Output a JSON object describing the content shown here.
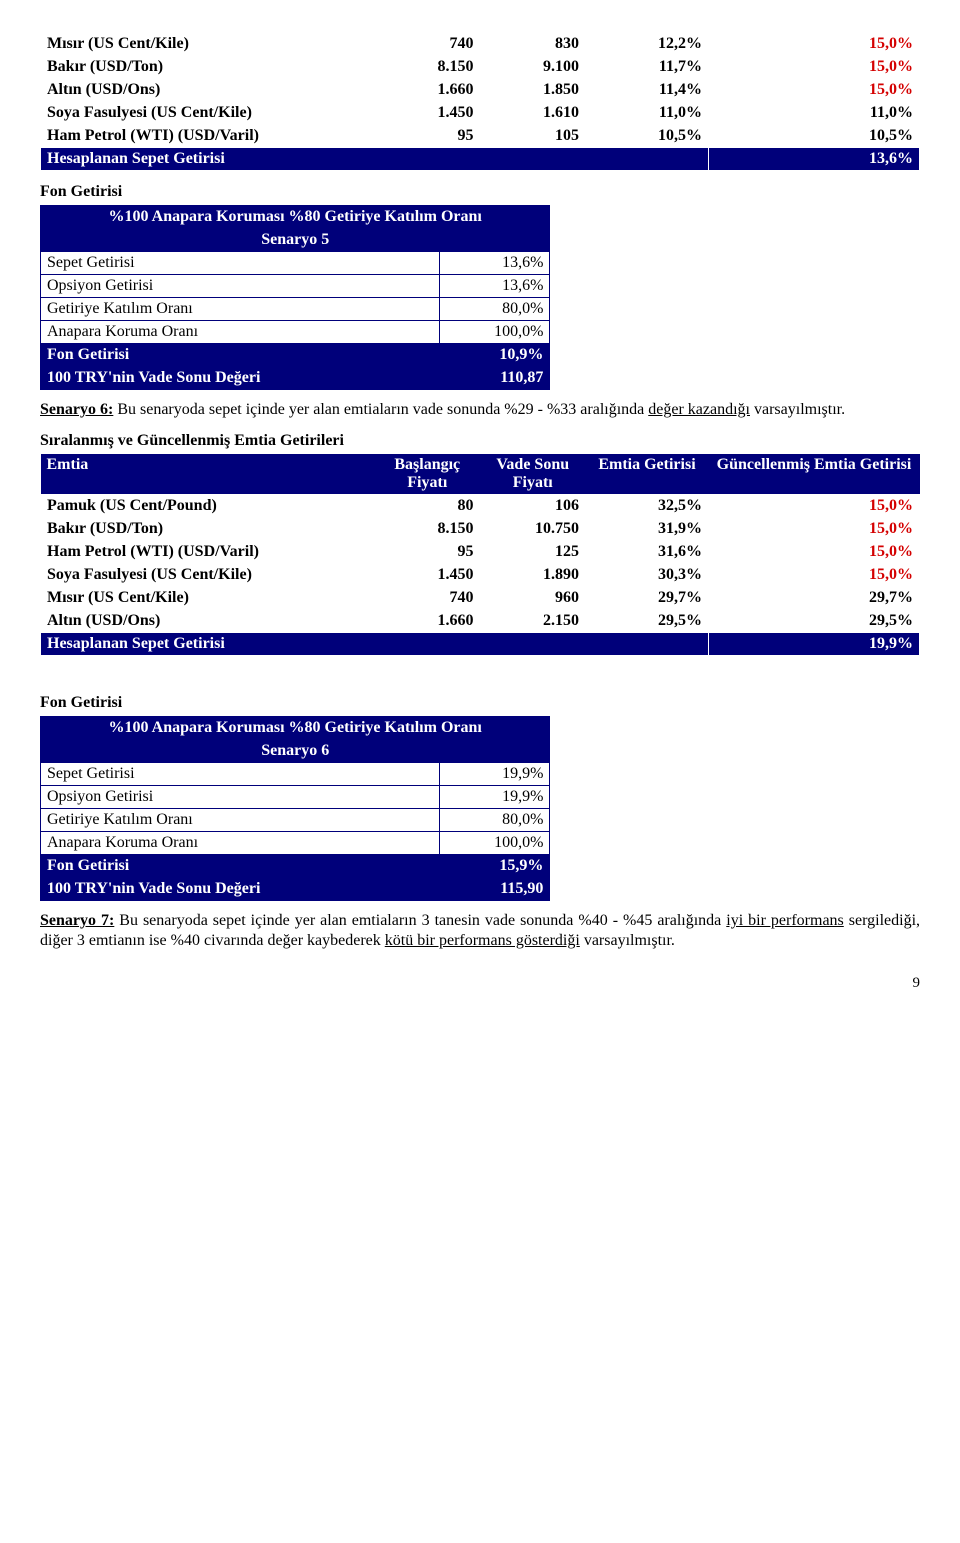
{
  "table1": {
    "rows": [
      {
        "label": "Mısır (US Cent/Kile)",
        "c1": "740",
        "c2": "830",
        "c3": "12,2%",
        "c4": "15,0%",
        "c4_red": true
      },
      {
        "label": "Bakır (USD/Ton)",
        "c1": "8.150",
        "c2": "9.100",
        "c3": "11,7%",
        "c4": "15,0%",
        "c4_red": true
      },
      {
        "label": "Altın (USD/Ons)",
        "c1": "1.660",
        "c2": "1.850",
        "c3": "11,4%",
        "c4": "15,0%",
        "c4_red": true
      },
      {
        "label": "Soya Fasulyesi (US Cent/Kile)",
        "c1": "1.450",
        "c2": "1.610",
        "c3": "11,0%",
        "c4": "11,0%",
        "c4_red": false
      },
      {
        "label": "Ham Petrol (WTI) (USD/Varil)",
        "c1": "95",
        "c2": "105",
        "c3": "10,5%",
        "c4": "10,5%",
        "c4_red": false
      }
    ],
    "footer_label": "Hesaplanan Sepet Getirisi",
    "footer_val": "13,6%"
  },
  "fon_getirisi_label": "Fon Getirisi",
  "scenario5": {
    "title1": "%100 Anapara Koruması %80 Getiriye Katılım Oranı",
    "title2": "Senaryo 5",
    "rows": [
      {
        "label": "Sepet Getirisi",
        "val": "13,6%"
      },
      {
        "label": "Opsiyon Getirisi",
        "val": "13,6%"
      },
      {
        "label": "Getiriye Katılım Oranı",
        "val": "80,0%"
      },
      {
        "label": "Anapara Koruma Oranı",
        "val": "100,0%"
      }
    ],
    "navy_rows": [
      {
        "label": "Fon Getirisi",
        "val": "10,9%"
      },
      {
        "label": "100 TRY'nin Vade Sonu Değeri",
        "val": "110,87"
      }
    ]
  },
  "para_s6_lead": "Senaryo 6:",
  "para_s6_body1": " Bu senaryoda sepet içinde yer alan emtiaların vade sonunda %29 - %33 aralığında ",
  "para_s6_under": "değer kazandığı",
  "para_s6_body2": " varsayılmıştır.",
  "ranked_title": "Sıralanmış ve Güncellenmiş Emtia Getirileri",
  "table2": {
    "head": {
      "c0": "Emtia",
      "c1": "Başlangıç Fiyatı",
      "c2": "Vade Sonu Fiyatı",
      "c3": "Emtia Getirisi",
      "c4": "Güncellenmiş Emtia Getirisi"
    },
    "rows": [
      {
        "label": "Pamuk (US Cent/Pound)",
        "c1": "80",
        "c2": "106",
        "c3": "32,5%",
        "c4": "15,0%",
        "c4_red": true
      },
      {
        "label": "Bakır (USD/Ton)",
        "c1": "8.150",
        "c2": "10.750",
        "c3": "31,9%",
        "c4": "15,0%",
        "c4_red": true
      },
      {
        "label": "Ham Petrol (WTI) (USD/Varil)",
        "c1": "95",
        "c2": "125",
        "c3": "31,6%",
        "c4": "15,0%",
        "c4_red": true
      },
      {
        "label": "Soya Fasulyesi (US Cent/Kile)",
        "c1": "1.450",
        "c2": "1.890",
        "c3": "30,3%",
        "c4": "15,0%",
        "c4_red": true
      },
      {
        "label": "Mısır (US Cent/Kile)",
        "c1": "740",
        "c2": "960",
        "c3": "29,7%",
        "c4": "29,7%",
        "c4_red": false
      },
      {
        "label": "Altın (USD/Ons)",
        "c1": "1.660",
        "c2": "2.150",
        "c3": "29,5%",
        "c4": "29,5%",
        "c4_red": false
      }
    ],
    "footer_label": "Hesaplanan Sepet Getirisi",
    "footer_val": "19,9%"
  },
  "scenario6": {
    "title1": "%100 Anapara Koruması %80 Getiriye Katılım Oranı",
    "title2": "Senaryo 6",
    "rows": [
      {
        "label": "Sepet Getirisi",
        "val": "19,9%"
      },
      {
        "label": "Opsiyon Getirisi",
        "val": "19,9%"
      },
      {
        "label": "Getiriye Katılım Oranı",
        "val": "80,0%"
      },
      {
        "label": "Anapara Koruma Oranı",
        "val": "100,0%"
      }
    ],
    "navy_rows": [
      {
        "label": "Fon Getirisi",
        "val": "15,9%"
      },
      {
        "label": "100 TRY'nin Vade Sonu Değeri",
        "val": "115,90"
      }
    ]
  },
  "para_s7_lead": "Senaryo 7:",
  "para_s7_body1": " Bu senaryoda sepet içinde yer alan emtiaların 3 tanesin vade sonunda %40 - %45 aralığında ",
  "para_s7_under1": "iyi bir performans",
  "para_s7_body2": " sergilediği, diğer 3 emtianın ise %40 civarında değer kaybederek ",
  "para_s7_under2": "kötü bir performans gösterdiği",
  "para_s7_body3": " varsayılmıştır.",
  "page_num": "9"
}
